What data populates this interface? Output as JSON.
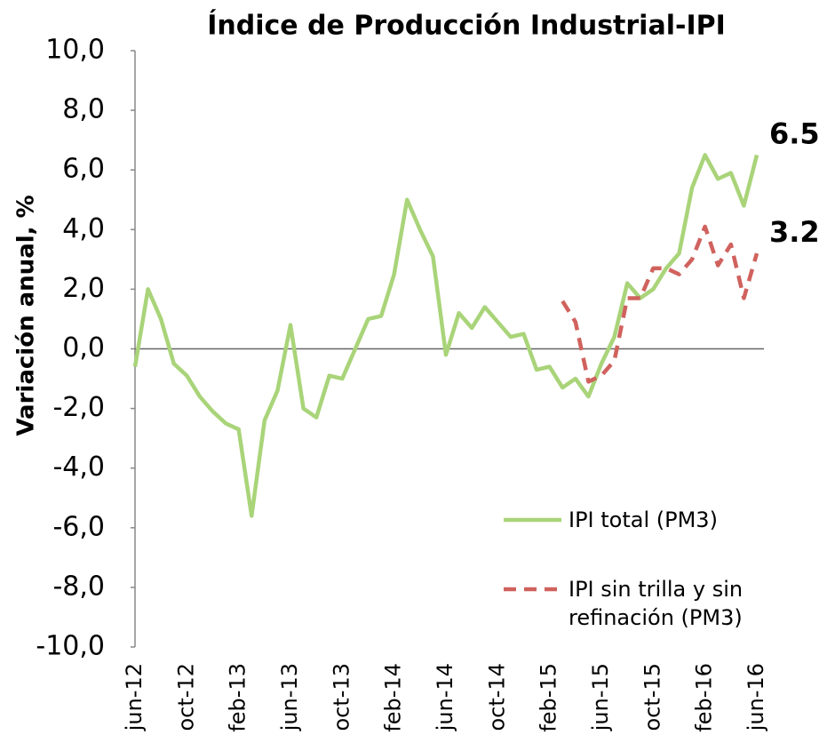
{
  "chart_data": {
    "type": "line",
    "title": "Índice de Producción Industrial-IPI",
    "y_label": "Variación anual, %",
    "categories": [
      "jun-12",
      null,
      null,
      null,
      "oct-12",
      null,
      null,
      null,
      "feb-13",
      null,
      null,
      null,
      "jun-13",
      null,
      null,
      null,
      "oct-13",
      null,
      null,
      null,
      "feb-14",
      null,
      null,
      null,
      "jun-14",
      null,
      null,
      null,
      "oct-14",
      null,
      null,
      null,
      "feb-15",
      null,
      null,
      null,
      "jun-15",
      null,
      null,
      null,
      "oct-15",
      null,
      null,
      null,
      "feb-16",
      null,
      null,
      null,
      "jun-16"
    ],
    "series": [
      {
        "name": "IPI total (PM3)",
        "color": "#a9d479",
        "label_color": "#92d050",
        "dashed": false,
        "values": [
          -0.6,
          2.0,
          1.0,
          -0.5,
          -0.9,
          -1.6,
          -2.1,
          -2.5,
          -2.7,
          -5.6,
          -2.4,
          -1.4,
          0.8,
          -2.0,
          -2.3,
          -0.9,
          -1.0,
          0.0,
          1.0,
          1.1,
          2.5,
          5.0,
          4.0,
          3.1,
          -0.2,
          1.2,
          0.7,
          1.4,
          0.9,
          0.4,
          0.5,
          -0.7,
          -0.6,
          -1.3,
          -1.0,
          -1.6,
          -0.5,
          0.4,
          2.2,
          1.7,
          2.0,
          2.7,
          3.2,
          5.4,
          6.5,
          5.7,
          5.9,
          4.8,
          6.5
        ]
      },
      {
        "name": "IPI sin trilla y sin refinación (PM3)",
        "color": "#d0625e",
        "label_color": "#c00000",
        "dashed": true,
        "values": [
          null,
          null,
          null,
          null,
          null,
          null,
          null,
          null,
          null,
          null,
          null,
          null,
          null,
          null,
          null,
          null,
          null,
          null,
          null,
          null,
          null,
          null,
          null,
          null,
          null,
          null,
          null,
          null,
          null,
          null,
          null,
          null,
          null,
          1.6,
          0.9,
          -1.1,
          -0.9,
          -0.4,
          1.7,
          1.7,
          2.7,
          2.7,
          2.5,
          3.0,
          4.1,
          2.8,
          3.5,
          1.7,
          3.2
        ]
      }
    ],
    "ylim": [
      -10,
      10
    ],
    "yticks": [
      {
        "value": -10,
        "label": "-10,0"
      },
      {
        "value": -8,
        "label": "-8,0"
      },
      {
        "value": -6,
        "label": "-6,0"
      },
      {
        "value": -4,
        "label": "-4,0"
      },
      {
        "value": -2,
        "label": "-2,0"
      },
      {
        "value": 0,
        "label": "0,0"
      },
      {
        "value": 2,
        "label": "2,0"
      },
      {
        "value": 4,
        "label": "4,0"
      },
      {
        "value": 6,
        "label": "6,0"
      },
      {
        "value": 8,
        "label": "8,0"
      },
      {
        "value": 10,
        "label": "10,0"
      }
    ],
    "grid": false
  }
}
